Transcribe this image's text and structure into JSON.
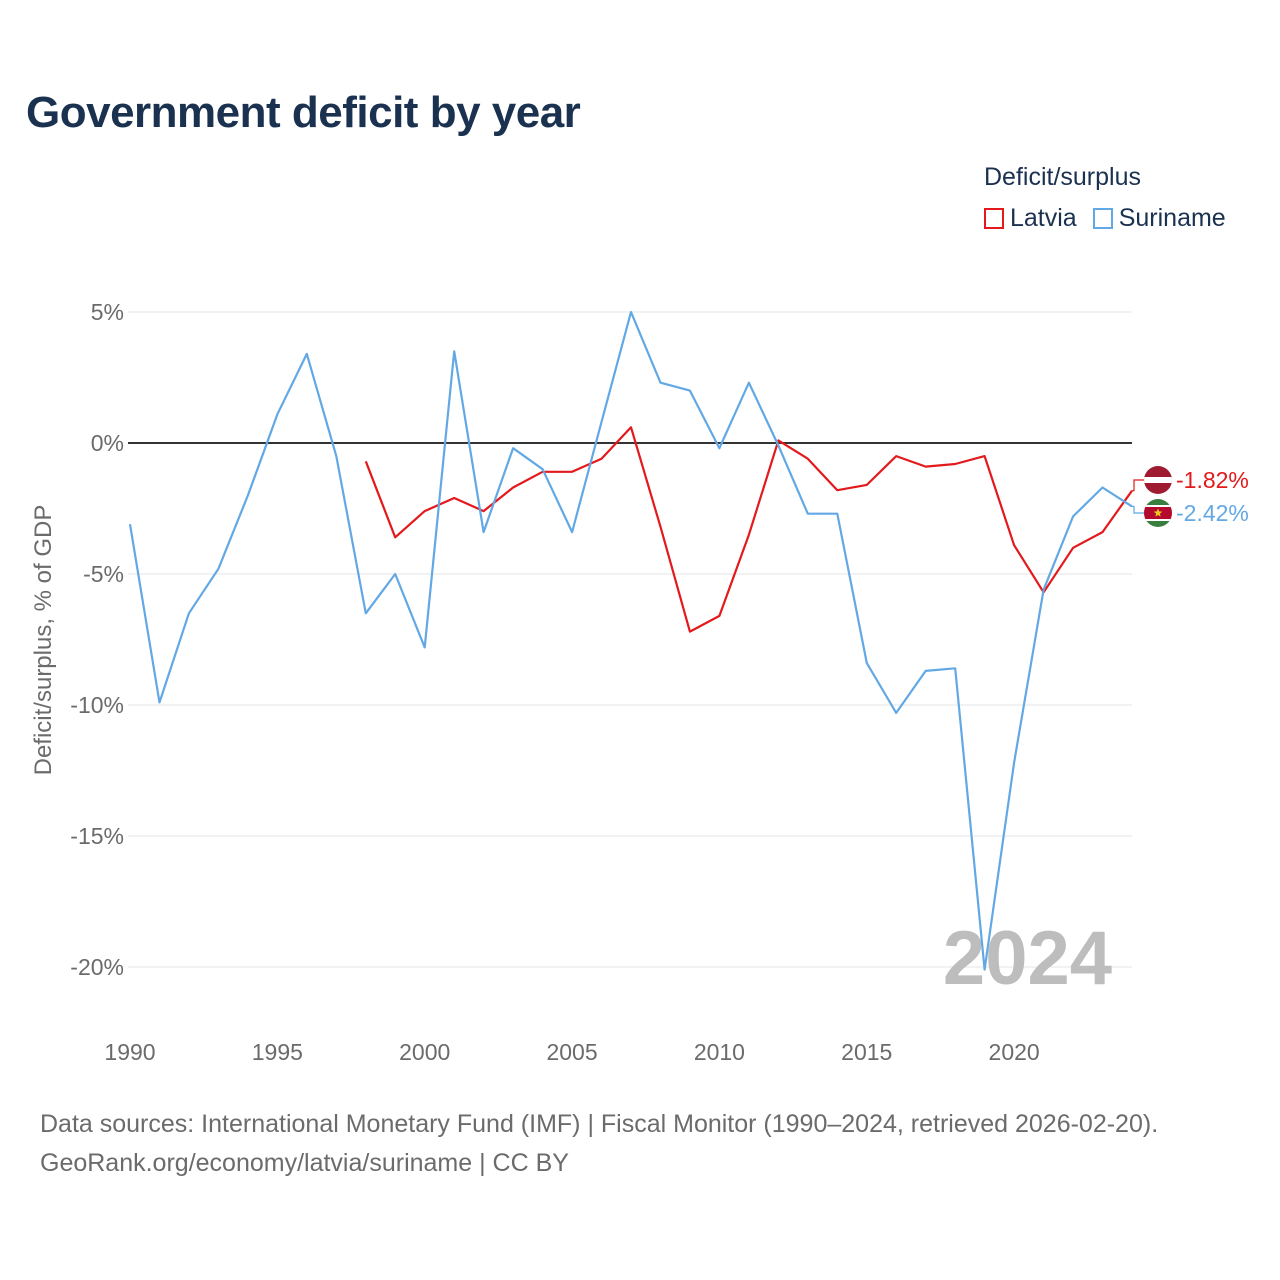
{
  "title": "Government deficit by year",
  "legend": {
    "title": "Deficit/surplus",
    "items": [
      {
        "label": "Latvia",
        "color": "#e3191c"
      },
      {
        "label": "Suriname",
        "color": "#62a8e5"
      }
    ]
  },
  "footer": {
    "line1": "Data sources: International Monetary Fund (IMF) | Fiscal Monitor (1990–2024, retrieved 2026-02-20).",
    "line2": "GeoRank.org/economy/latvia/suriname | CC BY"
  },
  "chart_data": {
    "type": "line",
    "title": "Government deficit by year",
    "xlabel": "",
    "ylabel": "Deficit/surplus, % of GDP",
    "xlim": [
      1990,
      2024
    ],
    "ylim": [
      -20,
      5
    ],
    "xticks": [
      1990,
      1995,
      2000,
      2005,
      2010,
      2015,
      2020
    ],
    "yticks": [
      5,
      0,
      -5,
      -10,
      -15,
      -20
    ],
    "ytick_labels": [
      "5%",
      "0%",
      "-5%",
      "-10%",
      "-15%",
      "-20%"
    ],
    "year_watermark": "2024",
    "series": [
      {
        "name": "Latvia",
        "color": "#e3191c",
        "end_label": "-1.82%",
        "x": [
          1998,
          1999,
          2000,
          2001,
          2002,
          2003,
          2004,
          2005,
          2006,
          2007,
          2008,
          2009,
          2010,
          2011,
          2012,
          2013,
          2014,
          2015,
          2016,
          2017,
          2018,
          2019,
          2020,
          2021,
          2022,
          2023,
          2024
        ],
        "values": [
          -0.7,
          -3.6,
          -2.6,
          -2.1,
          -2.6,
          -1.7,
          -1.1,
          -1.1,
          -0.6,
          0.6,
          -3.2,
          -7.2,
          -6.6,
          -3.5,
          0.1,
          -0.6,
          -1.8,
          -1.6,
          -0.5,
          -0.9,
          -0.8,
          -0.5,
          -3.9,
          -5.7,
          -4.0,
          -3.4,
          -1.82
        ]
      },
      {
        "name": "Suriname",
        "color": "#62a8e5",
        "end_label": "-2.42%",
        "x": [
          1990,
          1991,
          1992,
          1993,
          1994,
          1995,
          1996,
          1997,
          1998,
          1999,
          2000,
          2001,
          2002,
          2003,
          2004,
          2005,
          2006,
          2007,
          2008,
          2009,
          2010,
          2011,
          2012,
          2013,
          2014,
          2015,
          2016,
          2017,
          2018,
          2019,
          2020,
          2021,
          2022,
          2023,
          2024
        ],
        "values": [
          -3.1,
          -9.9,
          -6.5,
          -4.8,
          -2.0,
          1.1,
          3.4,
          -0.5,
          -6.5,
          -5.0,
          -7.8,
          3.5,
          -3.4,
          -0.2,
          -1.0,
          -3.4,
          0.8,
          5.0,
          2.3,
          2.0,
          -0.2,
          2.3,
          -0.1,
          -2.7,
          -2.7,
          -8.4,
          -10.3,
          -8.7,
          -8.6,
          -20.1,
          -12.2,
          -5.6,
          -2.8,
          -1.7,
          -2.42
        ]
      }
    ]
  }
}
